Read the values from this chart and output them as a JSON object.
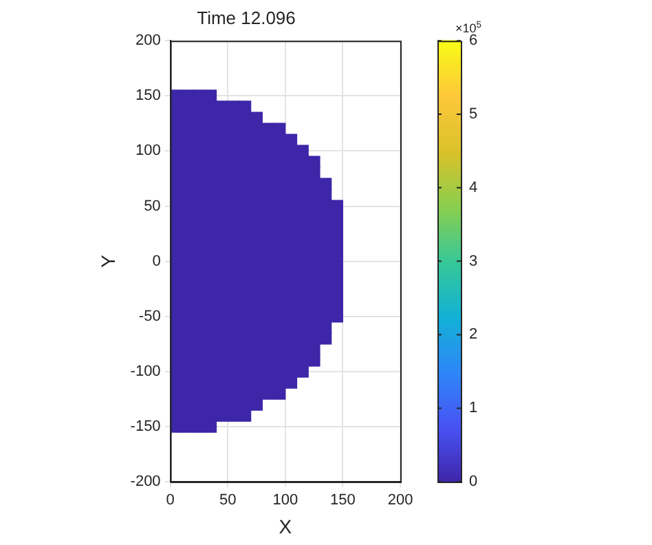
{
  "chart_data": {
    "type": "scatter",
    "title": "Time 12.096",
    "xlabel": "X",
    "ylabel": "Y",
    "marker": "square",
    "grid": true,
    "legend": false,
    "xlim": [
      0,
      200
    ],
    "xticks": [
      0,
      50,
      100,
      150,
      200
    ],
    "ylim": [
      -200,
      200
    ],
    "yticks": [
      -200,
      -150,
      -100,
      -50,
      0,
      50,
      100,
      150,
      200
    ],
    "clim": [
      0,
      6
    ],
    "cticks": [
      0,
      1,
      2,
      3,
      4,
      5,
      6
    ],
    "annotations": [
      "×10$^{5}$"
    ],
    "series": [
      {
        "x": [
          5,
          5,
          5,
          5,
          5,
          5,
          5,
          5,
          5,
          5,
          5,
          5,
          5,
          5,
          5,
          5,
          5,
          5,
          5,
          5,
          5,
          5,
          5,
          5,
          5,
          5,
          5,
          5,
          5,
          5,
          5
        ],
        "values": [
          -150,
          -140,
          -130,
          -120,
          -110,
          -100,
          -90,
          -80,
          -70,
          -60,
          -50,
          -40,
          -30,
          -20,
          -10,
          0,
          10,
          20,
          30,
          40,
          50,
          60,
          70,
          80,
          90,
          100,
          110,
          120,
          130,
          140,
          150
        ],
        "cvalues": [
          0,
          0,
          0,
          0,
          0,
          0,
          0,
          0,
          0,
          0,
          0,
          0,
          0,
          0,
          0,
          0,
          0,
          0,
          0,
          0,
          0,
          0,
          0,
          0,
          0,
          0,
          0,
          0,
          0,
          0,
          0
        ]
      },
      {
        "x": [
          15,
          15,
          15,
          15,
          15,
          15,
          15,
          15,
          15,
          15,
          15,
          15,
          15,
          15,
          15,
          15,
          15,
          15,
          15,
          15,
          15,
          15,
          15,
          15,
          15,
          15,
          15,
          15,
          15,
          15,
          15
        ],
        "values": [
          -150,
          -140,
          -130,
          -120,
          -110,
          -100,
          -90,
          -80,
          -70,
          -60,
          -50,
          -40,
          -30,
          -20,
          -10,
          0,
          10,
          20,
          30,
          40,
          50,
          60,
          70,
          80,
          90,
          100,
          110,
          120,
          130,
          140,
          150
        ],
        "cvalues": [
          0,
          0,
          0,
          0,
          0,
          0,
          0,
          0,
          0,
          0,
          0,
          0,
          0,
          0,
          0,
          0,
          0,
          0,
          0,
          0,
          0,
          0,
          0,
          0,
          0,
          0,
          0,
          0,
          0,
          0,
          0
        ]
      },
      {
        "x": [
          25,
          25,
          25,
          25,
          25,
          25,
          25,
          25,
          25,
          25,
          25,
          25,
          25,
          25,
          25,
          25,
          25,
          25,
          25,
          25,
          25,
          25,
          25,
          25,
          25,
          25,
          25,
          25,
          25,
          25,
          25
        ],
        "values": [
          -150,
          -140,
          -130,
          -120,
          -110,
          -100,
          -90,
          -80,
          -70,
          -60,
          -50,
          -40,
          -30,
          -20,
          -10,
          0,
          10,
          20,
          30,
          40,
          50,
          60,
          70,
          80,
          90,
          100,
          110,
          120,
          130,
          140,
          150
        ],
        "cvalues": [
          0,
          0,
          0,
          0,
          0,
          0,
          0,
          0,
          0,
          0,
          0,
          0,
          0,
          0,
          0,
          0,
          0,
          0,
          0,
          0,
          0,
          0,
          0,
          0,
          0,
          0,
          0,
          0,
          0,
          0,
          0
        ]
      },
      {
        "x": [
          35,
          35,
          35,
          35,
          35,
          35,
          35,
          35,
          35,
          35,
          35,
          35,
          35,
          35,
          35,
          35,
          35,
          35,
          35,
          35,
          35,
          35,
          35,
          35,
          35,
          35,
          35,
          35,
          35,
          35,
          35
        ],
        "values": [
          -150,
          -140,
          -130,
          -120,
          -110,
          -100,
          -90,
          -80,
          -70,
          -60,
          -50,
          -40,
          -30,
          -20,
          -10,
          0,
          10,
          20,
          30,
          40,
          50,
          60,
          70,
          80,
          90,
          100,
          110,
          120,
          130,
          140,
          150
        ],
        "cvalues": [
          0,
          0,
          0,
          0,
          0,
          0,
          0,
          0,
          0,
          0,
          0,
          0,
          0,
          0,
          0,
          0,
          0,
          0,
          0,
          0,
          0,
          0,
          0,
          0,
          0,
          0,
          0,
          0,
          0,
          0,
          0
        ]
      },
      {
        "x": [
          45,
          45,
          45,
          45,
          45,
          45,
          45,
          45,
          45,
          45,
          45,
          45,
          45,
          45,
          45,
          45,
          45,
          45,
          45,
          45,
          45,
          45,
          45,
          45,
          45,
          45,
          45,
          45,
          45
        ],
        "values": [
          -140,
          -130,
          -120,
          -110,
          -100,
          -90,
          -80,
          -70,
          -60,
          -50,
          -40,
          -30,
          -20,
          -10,
          0,
          10,
          20,
          30,
          40,
          50,
          60,
          70,
          80,
          90,
          100,
          110,
          120,
          130,
          140
        ],
        "cvalues": [
          0,
          0,
          0,
          0,
          0,
          0,
          0,
          0,
          0,
          0,
          0,
          0,
          0,
          0,
          0,
          0,
          0,
          0,
          0,
          0,
          0,
          0,
          0,
          0,
          0,
          0,
          0,
          0,
          0
        ]
      },
      {
        "x": [
          55,
          55,
          55,
          55,
          55,
          55,
          55,
          55,
          55,
          55,
          55,
          55,
          55,
          55,
          55,
          55,
          55,
          55,
          55,
          55,
          55,
          55,
          55,
          55,
          55,
          55,
          55,
          55,
          55
        ],
        "values": [
          -140,
          -130,
          -120,
          -110,
          -100,
          -90,
          -80,
          -70,
          -60,
          -50,
          -40,
          -30,
          -20,
          -10,
          0,
          10,
          20,
          30,
          40,
          50,
          60,
          70,
          80,
          90,
          100,
          110,
          120,
          130,
          140
        ],
        "cvalues": [
          0,
          0,
          0,
          0,
          0,
          0,
          0,
          0,
          0,
          0,
          0,
          0,
          0,
          0,
          0,
          0,
          0,
          0,
          0,
          0,
          0,
          0,
          0,
          0,
          0,
          0,
          0,
          0,
          0
        ]
      },
      {
        "x": [
          65,
          65,
          65,
          65,
          65,
          65,
          65,
          65,
          65,
          65,
          65,
          65,
          65,
          65,
          65,
          65,
          65,
          65,
          65,
          65,
          65,
          65,
          65,
          65,
          65,
          65,
          65,
          65,
          65
        ],
        "values": [
          -140,
          -130,
          -120,
          -110,
          -100,
          -90,
          -80,
          -70,
          -60,
          -50,
          -40,
          -30,
          -20,
          -10,
          0,
          10,
          20,
          30,
          40,
          50,
          60,
          70,
          80,
          90,
          100,
          110,
          120,
          130,
          140
        ],
        "cvalues": [
          0,
          0,
          0,
          0,
          0,
          0,
          0,
          0,
          0,
          0,
          0,
          0,
          0,
          0,
          0,
          0,
          0,
          0,
          0,
          0,
          0,
          0,
          0,
          0,
          0,
          0,
          0,
          0,
          0
        ]
      },
      {
        "x": [
          75,
          75,
          75,
          75,
          75,
          75,
          75,
          75,
          75,
          75,
          75,
          75,
          75,
          75,
          75,
          75,
          75,
          75,
          75,
          75,
          75,
          75,
          75,
          75,
          75,
          75,
          75
        ],
        "values": [
          -130,
          -120,
          -110,
          -100,
          -90,
          -80,
          -70,
          -60,
          -50,
          -40,
          -30,
          -20,
          -10,
          0,
          10,
          20,
          30,
          40,
          50,
          60,
          70,
          80,
          90,
          100,
          110,
          120,
          130
        ],
        "cvalues": [
          0,
          0,
          0,
          0,
          0,
          0,
          0,
          0,
          0,
          0,
          0,
          0,
          0,
          0,
          0,
          0,
          0,
          0,
          0,
          0,
          0,
          0,
          0,
          0,
          0,
          0,
          0
        ]
      },
      {
        "x": [
          85,
          85,
          85,
          85,
          85,
          85,
          85,
          85,
          85,
          85,
          85,
          85,
          85,
          85,
          85,
          85,
          85,
          85,
          85,
          85,
          85,
          85,
          85,
          85,
          85
        ],
        "values": [
          -120,
          -110,
          -100,
          -90,
          -80,
          -70,
          -60,
          -50,
          -40,
          -30,
          -20,
          -10,
          0,
          10,
          20,
          30,
          40,
          50,
          60,
          70,
          80,
          90,
          100,
          110,
          120
        ],
        "cvalues": [
          0,
          0,
          0,
          0,
          0,
          0,
          0,
          0,
          0,
          0,
          0,
          0,
          0,
          0,
          0,
          0,
          0,
          0,
          0,
          0,
          0,
          0,
          0,
          0,
          0
        ]
      },
      {
        "x": [
          95,
          95,
          95,
          95,
          95,
          95,
          95,
          95,
          95,
          95,
          95,
          95,
          95,
          95,
          95,
          95,
          95,
          95,
          95,
          95,
          95,
          95,
          95,
          95,
          95
        ],
        "values": [
          -120,
          -110,
          -100,
          -90,
          -80,
          -70,
          -60,
          -50,
          -40,
          -30,
          -20,
          -10,
          0,
          10,
          20,
          30,
          40,
          50,
          60,
          70,
          80,
          90,
          100,
          110,
          120
        ],
        "cvalues": [
          0,
          0,
          0,
          0,
          0,
          0,
          0,
          0,
          0,
          0,
          0,
          0,
          0,
          0,
          0,
          0,
          0,
          0,
          0,
          0,
          0,
          0,
          0,
          0,
          0
        ]
      },
      {
        "x": [
          105,
          105,
          105,
          105,
          105,
          105,
          105,
          105,
          105,
          105,
          105,
          105,
          105,
          105,
          105,
          105,
          105,
          105,
          105,
          105,
          105,
          105,
          105
        ],
        "values": [
          -110,
          -100,
          -90,
          -80,
          -70,
          -60,
          -50,
          -40,
          -30,
          -20,
          -10,
          0,
          10,
          20,
          30,
          40,
          50,
          60,
          70,
          80,
          90,
          100,
          110
        ],
        "cvalues": [
          0,
          0,
          0,
          0,
          0,
          0,
          0,
          0,
          0,
          0,
          0,
          0,
          0,
          0,
          0,
          0,
          0,
          0,
          0,
          0,
          0,
          0,
          0
        ]
      },
      {
        "x": [
          115,
          115,
          115,
          115,
          115,
          115,
          115,
          115,
          115,
          115,
          115,
          115,
          115,
          115,
          115,
          115,
          115,
          115,
          115,
          115,
          115
        ],
        "values": [
          -100,
          -90,
          -80,
          -70,
          -60,
          -50,
          -40,
          -30,
          -20,
          -10,
          0,
          10,
          20,
          30,
          40,
          50,
          60,
          70,
          80,
          90,
          100
        ],
        "cvalues": [
          0,
          0,
          0,
          0,
          0,
          0,
          0,
          0,
          0,
          0,
          0,
          0,
          0,
          0,
          0,
          0,
          0,
          0,
          0,
          0,
          0
        ]
      },
      {
        "x": [
          125,
          125,
          125,
          125,
          125,
          125,
          125,
          125,
          125,
          125,
          125,
          125,
          125,
          125,
          125,
          125,
          125,
          125,
          125
        ],
        "values": [
          -90,
          -80,
          -70,
          -60,
          -50,
          -40,
          -30,
          -20,
          -10,
          0,
          10,
          20,
          30,
          40,
          50,
          60,
          70,
          80,
          90
        ],
        "cvalues": [
          0,
          0,
          0,
          0,
          0,
          0,
          0,
          0,
          0,
          0,
          0,
          0,
          0,
          0,
          0,
          0,
          0,
          0,
          0
        ]
      },
      {
        "x": [
          135,
          135,
          135,
          135,
          135,
          135,
          135,
          135,
          135,
          135,
          135,
          135,
          135,
          135,
          135
        ],
        "values": [
          -70,
          -60,
          -50,
          -40,
          -30,
          -20,
          -10,
          0,
          10,
          20,
          30,
          40,
          50,
          60,
          70
        ],
        "cvalues": [
          0,
          0,
          0,
          0,
          0,
          0,
          0,
          0,
          0,
          0,
          0,
          0,
          0,
          0,
          0
        ]
      },
      {
        "x": [
          145,
          145,
          145,
          145,
          145,
          145,
          145,
          145,
          145,
          145,
          145
        ],
        "values": [
          -50,
          -40,
          -30,
          -20,
          -10,
          0,
          10,
          20,
          30,
          40,
          50
        ],
        "cvalues": [
          0,
          0,
          0,
          0,
          0,
          0,
          0,
          0,
          0,
          0,
          0
        ]
      }
    ]
  }
}
